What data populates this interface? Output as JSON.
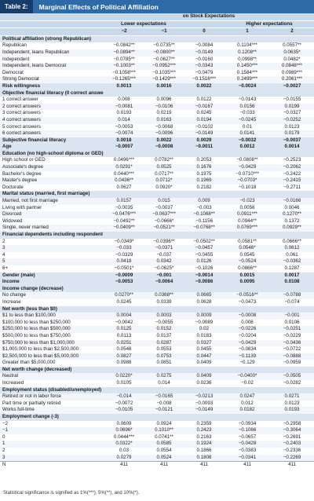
{
  "header": {
    "tag": "Table 2:",
    "title": "Marginal Effects of Political Affiliation"
  },
  "table": {
    "span": "on Stock Expectations",
    "lower": "Lower expectations",
    "higher": "Higher expectations",
    "columns": [
      "−2",
      "−1",
      "0",
      "1",
      "2"
    ],
    "groups": [
      {
        "label": "Political affiliation (strong Republican)",
        "rows": [
          {
            "label": "Republican",
            "values": [
              "−0.0842**",
              "−0.0735**",
              "−0.0084",
              "0.1104***",
              "0.0557**"
            ]
          },
          {
            "label": "Independent, leans Republican",
            "values": [
              "−0.0894**",
              "−0.0800**",
              "−0.0149",
              "0.1208**",
              "0.0635*"
            ]
          },
          {
            "label": "Independent",
            "values": [
              "−0.0785**",
              "−0.0627**",
              "−0.0160",
              "0.0998**",
              "0.0482*"
            ]
          },
          {
            "label": "Independent, leans Democrat",
            "values": [
              "−0.1003**",
              "−0.0952***",
              "−0.0343",
              "0.1450***",
              "0.0848***"
            ]
          },
          {
            "label": "Democrat",
            "values": [
              "−0.1058***",
              "−0.1035***",
              "−0.0479",
              "0.1584***",
              "0.0989***"
            ]
          },
          {
            "label": "Strong Democrat",
            "values": [
              "−0.1265***",
              "−0.1429***",
              "−0.1516***",
              "0.2499***",
              "0.2061***"
            ]
          }
        ]
      },
      {
        "label": "Risk willingness",
        "values": [
          "0.0013",
          "0.0016",
          "0.0022",
          "−0.0024",
          "−0.0027"
        ]
      },
      {
        "label": "Objective financial literacy (0 correct answers)",
        "rows": [
          {
            "label": "1 correct answer",
            "values": [
              "0.008",
              "0.0096",
              "0.0122",
              "−0.0143",
              "−0.0155"
            ]
          },
          {
            "label": "2 correct answers",
            "values": [
              "−0.0081",
              "−0.0106",
              "−0.0167",
              "0.0156",
              "0.0199"
            ]
          },
          {
            "label": "3 correct answers",
            "values": [
              "0.0193",
              "0.0219",
              "0.0245",
              "−0.033",
              "−0.0327"
            ]
          },
          {
            "label": "4 correct answers",
            "values": [
              "0.014",
              "0.0163",
              "0.0194",
              "−0.0245",
              "−0.0252"
            ]
          },
          {
            "label": "5 correct answers",
            "values": [
              "−0.0053",
              "−0.0068",
              "−0.0102",
              "0.01",
              "0.0123"
            ]
          },
          {
            "label": "6 correct answers",
            "values": [
              "−0.0074",
              "−0.0096",
              "−0.0149",
              "0.0141",
              "0.0179"
            ]
          }
        ]
      },
      {
        "label": "Subjective financial literacy",
        "values": [
          "0.0018",
          "0.0022",
          "0.0029",
          "−0.0032",
          "−0.0037"
        ]
      },
      {
        "label": "Age",
        "values": [
          "−0.0007",
          "−0.0008",
          "−0.0011",
          "0.0012",
          "0.0014"
        ]
      },
      {
        "label": "Education (no high-school diploma or GED)",
        "rows": [
          {
            "label": "High school or GED",
            "values": [
              "0.0496***",
              "0.0782**",
              "0.2053",
              "−0.0808**",
              "−0.2523"
            ]
          },
          {
            "label": "Associate's degree",
            "values": [
              "0.0291*",
              "0.0525",
              "0.1676",
              "−0.0429",
              "−0.2062"
            ]
          },
          {
            "label": "Bachelor's degree",
            "values": [
              "0.0440***",
              "0.0717**",
              "0.1975",
              "−0.0710***",
              "−0.2422"
            ]
          },
          {
            "label": "Master's degree",
            "values": [
              "0.0436**",
              "0.0712*",
              "0.1969",
              "−0.0703*",
              "−0.2415"
            ]
          },
          {
            "label": "Doctorate",
            "values": [
              "0.0627",
              "0.0920*",
              "0.2182",
              "−0.1018",
              "−0.2711"
            ]
          }
        ]
      },
      {
        "label": "Marital status (married, first marriage)",
        "rows": [
          {
            "label": "Married, not first marriage",
            "values": [
              "0.0157",
              "0.015",
              "0.009",
              "−0.023",
              "−0.0166"
            ]
          },
          {
            "label": "Living with partner",
            "values": [
              "−0.0035",
              "−0.0037",
              "−0.003",
              "0.0056",
              "0.0046"
            ]
          },
          {
            "label": "Divorced",
            "values": [
              "−0.0476***",
              "−0.0637***",
              "−0.1068**",
              "0.0911***",
              "0.1270**"
            ]
          },
          {
            "label": "Widowed",
            "values": [
              "−0.0492**",
              "−0.0666*",
              "−0.1156",
              "0.0944**",
              "0.1372"
            ]
          },
          {
            "label": "Single, never married",
            "values": [
              "−0.0409**",
              "−0.0521**",
              "−0.0768**",
              "0.0769***",
              "0.0929**"
            ]
          }
        ]
      },
      {
        "label": "Financial dependents including respondent (1)",
        "rows": [
          {
            "label": "2",
            "values": [
              "−0.0349*",
              "−0.0396**",
              "−0.0502**",
              "0.0581**",
              "0.0666**"
            ]
          },
          {
            "label": "3",
            "values": [
              "−0.033",
              "−0.0371",
              "−0.0457",
              "0.0546*",
              "0.0612"
            ]
          },
          {
            "label": "4",
            "values": [
              "−0.0329",
              "−0.037",
              "−0.0455",
              "0.0545",
              "0.061"
            ]
          },
          {
            "label": "5",
            "values": [
              "0.0418",
              "0.0342",
              "0.0126",
              "−0.0524",
              "−0.0362"
            ]
          },
          {
            "label": "6+",
            "values": [
              "−0.0501*",
              "−0.0625*",
              "−0.1026",
              "0.0866**",
              "0.1287"
            ]
          }
        ]
      },
      {
        "label": "Gender (male)",
        "values": [
          "−0.0009",
          "−0.001",
          "−0.0014",
          "0.0015",
          "0.0017"
        ]
      },
      {
        "label": "Income",
        "values": [
          "−0.0053",
          "−0.0064",
          "−0.0086",
          "0.0095",
          "0.0108"
        ]
      },
      {
        "label": "Income change (decrease)",
        "rows": [
          {
            "label": "No change",
            "values": [
              "0.0270**",
              "0.0368**",
              "0.0665",
              "−0.0516**",
              "−0.0788"
            ]
          },
          {
            "label": "Increase",
            "values": [
              "0.0245",
              "0.0339",
              "0.0628",
              "−0.0473",
              "−0.074"
            ]
          }
        ]
      },
      {
        "label": "Net worth (less than $0)",
        "rows": [
          {
            "label": "$1 to less than $100,000",
            "values": [
              "0.0004",
              "0.0003",
              "0.0009",
              "−0.0008",
              "−0.001"
            ]
          },
          {
            "label": "$100,000 to less than $250,000",
            "values": [
              "−0.0042",
              "−0.0055",
              "−0.0089",
              "0.008",
              "0.0106"
            ]
          },
          {
            "label": "$250,000 to less than $500,000",
            "values": [
              "0.0125",
              "0.0152",
              "0.02",
              "−0.0226",
              "−0.0251"
            ]
          },
          {
            "label": "$500,000 to less than $750,000",
            "values": [
              "0.0113",
              "0.0137",
              "0.0183",
              "−0.0204",
              "−0.0229"
            ]
          },
          {
            "label": "$750,000 to less than $1,000,000",
            "values": [
              "0.0251",
              "0.0287",
              "0.0327",
              "−0.0429",
              "−0.0436"
            ]
          },
          {
            "label": "$1,000,000 to less than $2,500,000",
            "values": [
              "0.0548",
              "0.0553",
              "0.0455",
              "−0.0834",
              "−0.0722"
            ]
          },
          {
            "label": "$2,500,000 to less than $5,000,000",
            "values": [
              "0.0827",
              "0.0753",
              "0.0447",
              "−0.1139",
              "−0.0888"
            ]
          },
          {
            "label": "Greater than $5,000,000",
            "values": [
              "0.0988",
              "0.0851",
              "0.0409",
              "−0.129",
              "−0.0959"
            ]
          }
        ]
      },
      {
        "label": "Net worth change (decreased)",
        "rows": [
          {
            "label": "Neutral",
            "values": [
              "0.0220*",
              "0.0275",
              "0.0409",
              "−0.0400*",
              "−0.0505"
            ]
          },
          {
            "label": "Increased",
            "values": [
              "0.0105",
              "0.014",
              "0.0236",
              "−0.02",
              "−0.0282"
            ]
          }
        ]
      },
      {
        "label": "Employment status (disabled/unemployed)",
        "rows": [
          {
            "label": "Retired or not in labor force",
            "values": [
              "−0.014",
              "−0.0165",
              "−0.0213",
              "0.0247",
              "0.0271"
            ]
          },
          {
            "label": "Part time or partially retired",
            "values": [
              "−0.0072",
              "−0.008",
              "−0.0093",
              "0.012",
              "0.0123"
            ]
          },
          {
            "label": "Works full-time",
            "values": [
              "−0.0105",
              "−0.0121",
              "−0.0149",
              "0.0182",
              "0.0193"
            ]
          }
        ]
      },
      {
        "label": "Employment change (-3)",
        "rows": [
          {
            "label": "−2",
            "values": [
              "0.0609",
              "0.0924",
              "0.2359",
              "−0.0934",
              "−0.2958"
            ]
          },
          {
            "label": "−1",
            "values": [
              "0.0696*",
              "0.1010**",
              "0.2423",
              "−0.1066",
              "−0.3064"
            ]
          },
          {
            "label": "0",
            "values": [
              "0.0444***",
              "0.0741**",
              "0.2163",
              "−0.0657",
              "−0.2691"
            ]
          },
          {
            "label": "1",
            "values": [
              "0.0322*",
              "0.0585",
              "0.1924",
              "−0.0428",
              "−0.2403"
            ]
          },
          {
            "label": "2",
            "values": [
              "0.03",
              "0.0554",
              "0.1866",
              "−0.0383",
              "−0.2336"
            ]
          },
          {
            "label": "3",
            "values": [
              "0.0279",
              "0.0524",
              "0.1808",
              "−0.0341",
              "−0.2269"
            ]
          }
        ]
      },
      {
        "label": "N",
        "values": [
          "411",
          "411",
          "411",
          "411",
          "411"
        ]
      }
    ]
  },
  "footnote": "Statistical significance is signified as 1%(***), 5%(**), and 10%(*)."
}
